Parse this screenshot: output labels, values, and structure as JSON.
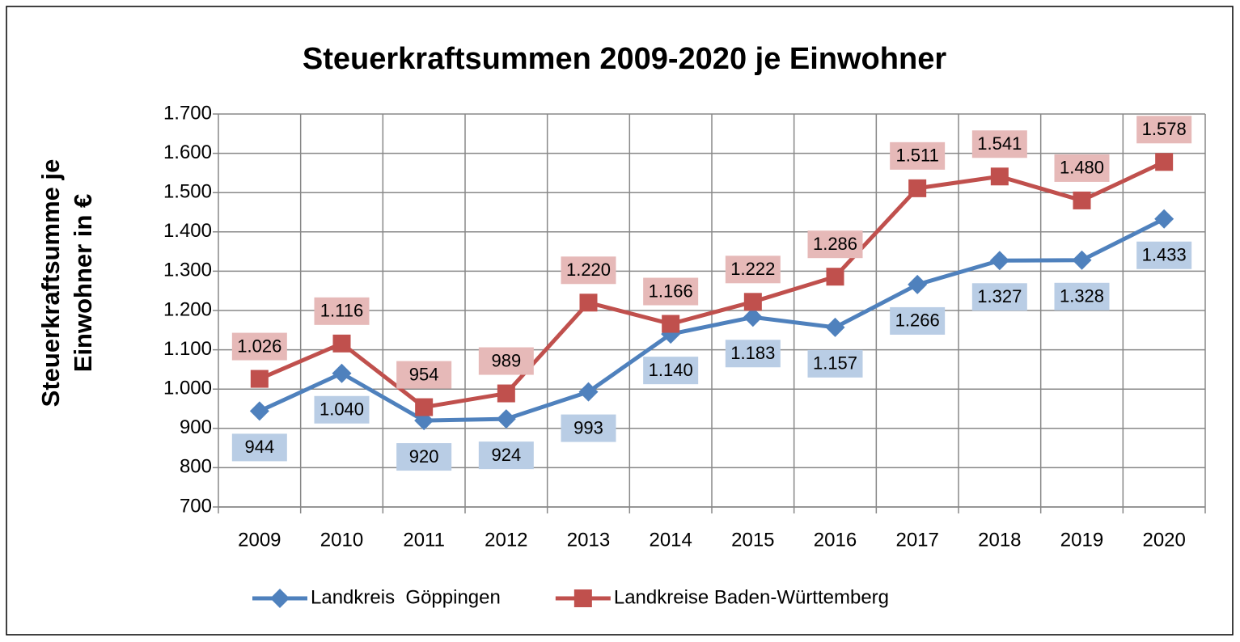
{
  "chart_data": {
    "type": "line",
    "title": "Steuerkraftsummen 2009-2020 je Einwohner",
    "y_label": [
      "Steuerkraftsumme je",
      "Einwohner in €"
    ],
    "categories": [
      "2009",
      "2010",
      "2011",
      "2012",
      "2013",
      "2014",
      "2015",
      "2016",
      "2017",
      "2018",
      "2019",
      "2020"
    ],
    "series": [
      {
        "name": "Landkreis  Göppingen",
        "color": "#4f81bd",
        "marker": "diamond",
        "label_color": "#b9cde5",
        "label_position": "below",
        "values": [
          944,
          1040,
          920,
          924,
          993,
          1140,
          1183,
          1157,
          1266,
          1327,
          1328,
          1433
        ],
        "value_labels": [
          "944",
          "1.040",
          "920",
          "924",
          "993",
          "1.140",
          "1.183",
          "1.157",
          "1.266",
          "1.327",
          "1.328",
          "1.433"
        ]
      },
      {
        "name": "Landkreise Baden-Württemberg",
        "color": "#c0504d",
        "marker": "square",
        "label_color": "#e6b9b8",
        "label_position": "above",
        "values": [
          1026,
          1116,
          954,
          989,
          1220,
          1166,
          1222,
          1286,
          1511,
          1541,
          1480,
          1578
        ],
        "value_labels": [
          "1.026",
          "1.116",
          "954",
          "989",
          "1.220",
          "1.166",
          "1.222",
          "1.286",
          "1.511",
          "1.541",
          "1.480",
          "1.578"
        ]
      }
    ],
    "ylim": [
      700,
      1700
    ],
    "yticks": [
      700,
      800,
      900,
      {
        "value": 1000,
        "label": "1.000"
      },
      {
        "value": 1100,
        "label": "1.100"
      },
      {
        "value": 1200,
        "label": "1.200"
      },
      {
        "value": 1300,
        "label": "1.300"
      },
      {
        "value": 1400,
        "label": "1.400"
      },
      {
        "value": 1500,
        "label": "1.500"
      },
      {
        "value": 1600,
        "label": "1.600"
      },
      {
        "value": 1700,
        "label": "1.700"
      }
    ],
    "grid": true,
    "legend": "bottom"
  }
}
